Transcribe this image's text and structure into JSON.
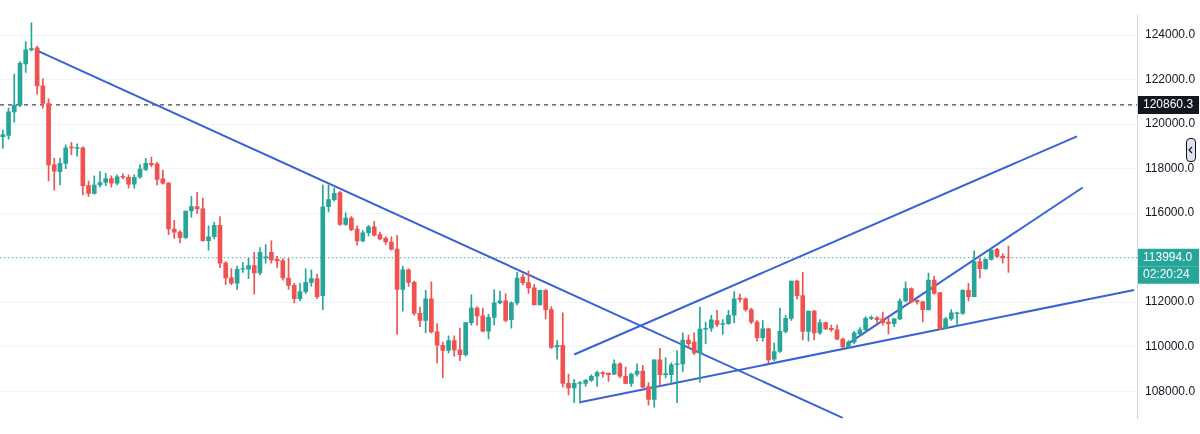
{
  "chart_data": {
    "type": "candlestick",
    "categories": [
      null,
      null,
      null,
      null,
      null,
      null,
      null,
      null,
      null,
      null,
      null,
      null,
      null,
      null,
      null,
      null,
      null,
      null,
      null,
      null,
      null,
      null,
      null,
      null,
      null,
      null,
      null,
      null,
      null,
      null,
      null,
      null,
      null,
      null,
      null,
      null,
      null,
      null,
      null,
      null,
      null,
      null,
      null,
      null,
      null,
      null,
      null,
      null,
      null,
      null,
      null,
      null,
      null,
      null,
      null,
      null,
      null,
      null,
      null,
      null,
      null,
      null,
      null,
      null,
      null,
      null,
      null,
      null,
      null,
      null,
      null,
      null,
      null,
      null,
      null,
      null,
      null,
      null,
      null,
      null,
      null,
      null,
      null,
      null,
      null,
      null,
      null,
      null,
      null,
      null,
      null,
      null,
      null,
      null,
      null,
      null,
      null,
      null,
      null,
      null,
      null,
      null,
      null,
      null,
      null,
      null,
      null,
      null,
      null,
      null,
      null,
      null,
      null,
      null,
      null,
      null,
      null,
      null,
      null,
      null,
      null,
      null,
      null,
      null,
      null,
      null,
      null,
      null,
      null,
      null,
      null,
      null,
      null,
      null,
      null,
      null,
      null,
      null,
      null,
      null,
      null,
      null,
      null,
      null,
      null,
      null,
      null,
      null,
      null,
      null,
      null,
      null,
      null,
      null,
      null,
      null,
      null,
      null,
      null,
      null,
      null,
      null,
      null,
      null,
      null,
      null,
      null,
      null,
      null,
      null,
      null,
      null,
      null,
      null,
      null,
      null,
      null,
      null,
      null,
      null,
      null,
      null,
      null,
      null,
      null,
      null,
      null,
      null,
      null,
      null,
      null,
      null,
      null,
      null,
      null,
      null,
      null,
      null,
      null
    ],
    "ohlc": [
      [
        119434,
        119740,
        118905,
        119532
      ],
      [
        119490,
        120715,
        119323,
        120548
      ],
      [
        120548,
        122246,
        120088,
        120854
      ],
      [
        120854,
        122803,
        120785,
        122733
      ],
      [
        122705,
        123708,
        122316,
        123332
      ],
      [
        123332,
        124543,
        123290,
        123388
      ],
      [
        123429,
        123499,
        121341,
        121717
      ],
      [
        121717,
        122037,
        120715,
        120924
      ],
      [
        120924,
        121133,
        117444,
        118168
      ],
      [
        118168,
        118460,
        117026,
        117889
      ],
      [
        117861,
        118460,
        117263,
        118237
      ],
      [
        118237,
        119072,
        118000,
        118933
      ],
      [
        118975,
        119184,
        118627,
        118933
      ],
      [
        118905,
        119114,
        118557,
        118947
      ],
      [
        118933,
        118975,
        116817,
        117235
      ],
      [
        117235,
        117444,
        116748,
        116887
      ],
      [
        116887,
        117680,
        116845,
        117263
      ],
      [
        117263,
        117861,
        117166,
        117374
      ],
      [
        117374,
        117792,
        117235,
        117555
      ],
      [
        117555,
        117680,
        117166,
        117346
      ],
      [
        117346,
        117722,
        117263,
        117625
      ],
      [
        117652,
        117764,
        117541,
        117610
      ],
      [
        117610,
        117722,
        117123,
        117304
      ],
      [
        117304,
        117722,
        117123,
        117610
      ],
      [
        117625,
        118181,
        117555,
        117973
      ],
      [
        117959,
        118460,
        117903,
        118237
      ],
      [
        118237,
        118517,
        118070,
        118181
      ],
      [
        118209,
        118279,
        117263,
        117513
      ],
      [
        117541,
        117931,
        117304,
        117346
      ],
      [
        117346,
        117374,
        115036,
        115286
      ],
      [
        115286,
        115676,
        114868,
        115147
      ],
      [
        115147,
        115217,
        114660,
        114896
      ],
      [
        114896,
        116093,
        114868,
        116093
      ],
      [
        116093,
        116748,
        115815,
        116288
      ],
      [
        116288,
        116929,
        115982,
        116191
      ],
      [
        116191,
        116678,
        114729,
        114757
      ],
      [
        114757,
        115425,
        114339,
        114938
      ],
      [
        114938,
        115592,
        114840,
        115453
      ],
      [
        115453,
        115843,
        113546,
        113755
      ],
      [
        113755,
        113824,
        112780,
        113087
      ],
      [
        113087,
        113504,
        112780,
        112850
      ],
      [
        112850,
        113616,
        112572,
        113476
      ],
      [
        113476,
        113783,
        113337,
        113504
      ],
      [
        113476,
        113963,
        113059,
        113643
      ],
      [
        113643,
        114242,
        112363,
        113310
      ],
      [
        113308,
        114449,
        113224,
        114240
      ],
      [
        113990,
        114588,
        113753,
        114032
      ],
      [
        114240,
        114755,
        113753,
        113892
      ],
      [
        113934,
        114059,
        113544,
        113850
      ],
      [
        113864,
        113962,
        112988,
        113085
      ],
      [
        113085,
        113962,
        112570,
        112751
      ],
      [
        112751,
        112848,
        111971,
        112152
      ],
      [
        112152,
        112848,
        112055,
        112472
      ],
      [
        112472,
        113502,
        112389,
        112890
      ],
      [
        112890,
        113447,
        112709,
        113057
      ],
      [
        113057,
        113266,
        112152,
        112250
      ],
      [
        112291,
        117261,
        111665,
        116286
      ],
      [
        116286,
        117261,
        116050,
        116607
      ],
      [
        116607,
        117122,
        116537,
        116885
      ],
      [
        116927,
        116982,
        115451,
        115493
      ],
      [
        115493,
        116008,
        115451,
        115771
      ],
      [
        115771,
        115841,
        115215,
        115256
      ],
      [
        115284,
        115423,
        114560,
        114755
      ],
      [
        114755,
        115215,
        114700,
        115117
      ],
      [
        115117,
        115451,
        114978,
        115382
      ],
      [
        115382,
        115632,
        114978,
        115006
      ],
      [
        115034,
        115145,
        114797,
        114839
      ],
      [
        114867,
        114936,
        114588,
        114700
      ],
      [
        114700,
        114936,
        114338,
        114380
      ],
      [
        114380,
        115006,
        110551,
        112570
      ],
      [
        112570,
        113614,
        111595,
        113447
      ],
      [
        113447,
        113502,
        112709,
        112890
      ],
      [
        112890,
        112946,
        111414,
        111498
      ],
      [
        111498,
        111776,
        110900,
        111178
      ],
      [
        111178,
        112528,
        110621,
        112152
      ],
      [
        112152,
        112918,
        110621,
        110663
      ],
      [
        110663,
        111039,
        109271,
        110064
      ],
      [
        110064,
        110203,
        108603,
        109827
      ],
      [
        109827,
        110482,
        109716,
        110273
      ],
      [
        110273,
        110482,
        109577,
        109855
      ],
      [
        109855,
        110830,
        109368,
        109646
      ],
      [
        109646,
        111080,
        109577,
        111080
      ],
      [
        111080,
        112333,
        110969,
        111735
      ],
      [
        111735,
        111804,
        110969,
        111387
      ],
      [
        111387,
        111735,
        110663,
        110691
      ],
      [
        110691,
        111456,
        110343,
        111317
      ],
      [
        111317,
        112570,
        110969,
        111971
      ],
      [
        111971,
        112500,
        111916,
        112055
      ],
      [
        112055,
        112389,
        111108,
        111178
      ],
      [
        111218,
        112011,
        110828,
        111970
      ],
      [
        111970,
        113334,
        111872,
        113083
      ],
      [
        113125,
        113264,
        112777,
        112874
      ],
      [
        112874,
        113403,
        112387,
        112638
      ],
      [
        112638,
        112805,
        111872,
        111872
      ],
      [
        111872,
        112526,
        111872,
        112526
      ],
      [
        112526,
        112568,
        111246,
        111663
      ],
      [
        111663,
        111803,
        109923,
        109965
      ],
      [
        109993,
        110272,
        109436,
        110063
      ],
      [
        110063,
        111524,
        108183,
        108350
      ],
      [
        108350,
        108768,
        107835,
        108142
      ],
      [
        108142,
        108531,
        107487,
        108350
      ],
      [
        108350,
        108434,
        107459,
        108392
      ],
      [
        108350,
        108531,
        108211,
        108489
      ],
      [
        108489,
        108740,
        108434,
        108670
      ],
      [
        108670,
        108907,
        108211,
        108838
      ],
      [
        108838,
        108879,
        108628,
        108782
      ],
      [
        108810,
        108810,
        108434,
        108740
      ],
      [
        108768,
        109408,
        108740,
        109227
      ],
      [
        109227,
        109269,
        108601,
        108670
      ],
      [
        108670,
        109088,
        108323,
        108350
      ],
      [
        108350,
        108810,
        108211,
        108768
      ],
      [
        108768,
        109227,
        108670,
        108907
      ],
      [
        108907,
        109158,
        108155,
        108183
      ],
      [
        108211,
        108392,
        107376,
        107627
      ],
      [
        107627,
        109408,
        107279,
        109408
      ],
      [
        109408,
        109923,
        108253,
        108740
      ],
      [
        108740,
        109506,
        108601,
        108796
      ],
      [
        108740,
        109269,
        108323,
        109186
      ],
      [
        109186,
        109826,
        107487,
        109227
      ],
      [
        109227,
        110619,
        108879,
        110299
      ],
      [
        110299,
        110522,
        109965,
        110132
      ],
      [
        110202,
        110619,
        109645,
        109715
      ],
      [
        109715,
        111775,
        108392,
        110787
      ],
      [
        110787,
        111107,
        110132,
        110828
      ],
      [
        110828,
        111413,
        110689,
        111204
      ],
      [
        111176,
        111636,
        110898,
        110995
      ],
      [
        110995,
        111218,
        110550,
        111037
      ],
      [
        111037,
        111636,
        110995,
        111413
      ],
      [
        111413,
        112471,
        111079,
        112151
      ],
      [
        112178,
        112360,
        112011,
        112123
      ],
      [
        112151,
        112192,
        111594,
        111663
      ],
      [
        111663,
        111733,
        111037,
        111107
      ],
      [
        111107,
        111176,
        110243,
        110410
      ],
      [
        110410,
        111176,
        110243,
        110800
      ],
      [
        110800,
        110828,
        109269,
        109408
      ],
      [
        109436,
        110160,
        109366,
        109784
      ],
      [
        109784,
        111733,
        109742,
        110689
      ],
      [
        110689,
        111413,
        110619,
        111274
      ],
      [
        111274,
        112944,
        111176,
        112944
      ],
      [
        112944,
        112986,
        112150,
        112290
      ],
      [
        112290,
        113334,
        110299,
        110689
      ],
      [
        110689,
        111594,
        110243,
        111594
      ],
      [
        111594,
        111635,
        110299,
        110619
      ],
      [
        110619,
        111218,
        110550,
        111079
      ],
      [
        111079,
        111107,
        110759,
        110800
      ],
      [
        110828,
        110967,
        110689,
        110759
      ],
      [
        110759,
        110967,
        110299,
        110341
      ],
      [
        110341,
        110383,
        109965,
        109993
      ],
      [
        109993,
        110271,
        109965,
        110202
      ],
      [
        110202,
        110689,
        110132,
        110619
      ],
      [
        110578,
        110856,
        110522,
        110759
      ],
      [
        110759,
        111357,
        110661,
        111274
      ],
      [
        111274,
        111385,
        111218,
        111315
      ],
      [
        111301,
        111357,
        111037,
        111218
      ],
      [
        111246,
        111552,
        110967,
        111079
      ],
      [
        111107,
        111274,
        110578,
        111037
      ],
      [
        111037,
        111274,
        110898,
        111246
      ],
      [
        111246,
        112150,
        111218,
        112053
      ],
      [
        112053,
        112916,
        112011,
        112610
      ],
      [
        112610,
        112638,
        111970,
        112011
      ],
      [
        112081,
        112109,
        111914,
        112011
      ],
      [
        112011,
        112053,
        111107,
        111663
      ],
      [
        111663,
        113306,
        111635,
        112986
      ],
      [
        112986,
        113167,
        112359,
        112387
      ],
      [
        112429,
        112429,
        110759,
        110800
      ],
      [
        110828,
        111315,
        110800,
        111246
      ],
      [
        111246,
        111663,
        111176,
        111524
      ],
      [
        111482,
        111552,
        110940,
        111524
      ],
      [
        111496,
        112568,
        111454,
        112526
      ],
      [
        112526,
        112846,
        112053,
        112248
      ],
      [
        112248,
        114308,
        112248,
        113821
      ],
      [
        113821,
        113960,
        113083,
        113501
      ],
      [
        113501,
        113960,
        113473,
        113918
      ],
      [
        113918,
        114419,
        113891,
        114336
      ],
      [
        114378,
        114419,
        114002,
        114057
      ],
      [
        114057,
        114169,
        113751,
        114002
      ],
      [
        114002,
        114517,
        113334,
        113994
      ],
      null,
      null,
      null,
      null,
      null,
      null,
      null,
      null,
      null,
      null,
      null,
      null,
      null,
      null,
      null,
      null,
      null,
      null,
      null,
      null,
      null,
      null
    ],
    "colors": [
      "#26a69a",
      "#26a69a",
      "#26a69a",
      "#26a69a",
      "#26a69a",
      "#26a69a",
      "#ef5350",
      "#ef5350",
      "#ef5350",
      "#ef5350",
      "#26a69a",
      "#26a69a",
      "#ef5350",
      "#26a69a",
      "#ef5350",
      "#ef5350",
      "#26a69a",
      "#26a69a",
      "#26a69a",
      "#ef5350",
      "#26a69a",
      "#ef5350",
      "#ef5350",
      "#26a69a",
      "#26a69a",
      "#26a69a",
      "#ef5350",
      "#ef5350",
      "#ef5350",
      "#ef5350",
      "#ef5350",
      "#ef5350",
      "#26a69a",
      "#26a69a",
      "#ef5350",
      "#ef5350",
      "#26a69a",
      "#26a69a",
      "#ef5350",
      "#ef5350",
      "#ef5350",
      "#26a69a",
      "#26a69a",
      "#26a69a",
      "#ef5350",
      "#26a69a",
      "#26a69a",
      "#ef5350",
      "#ef5350",
      "#ef5350",
      "#ef5350",
      "#ef5350",
      "#26a69a",
      "#26a69a",
      "#26a69a",
      "#ef5350",
      "#26a69a",
      "#26a69a",
      "#26a69a",
      "#ef5350",
      "#26a69a",
      "#ef5350",
      "#ef5350",
      "#26a69a",
      "#26a69a",
      "#ef5350",
      "#ef5350",
      "#ef5350",
      "#ef5350",
      "#ef5350",
      "#26a69a",
      "#ef5350",
      "#ef5350",
      "#ef5350",
      "#26a69a",
      "#ef5350",
      "#ef5350",
      "#ef5350",
      "#26a69a",
      "#ef5350",
      "#ef5350",
      "#26a69a",
      "#26a69a",
      "#ef5350",
      "#ef5350",
      "#26a69a",
      "#26a69a",
      "#26a69a",
      "#ef5350",
      "#26a69a",
      "#26a69a",
      "#ef5350",
      "#ef5350",
      "#ef5350",
      "#26a69a",
      "#ef5350",
      "#ef5350",
      "#26a69a",
      "#ef5350",
      "#ef5350",
      "#26a69a",
      "#26a69a",
      "#26a69a",
      "#26a69a",
      "#26a69a",
      "#ef5350",
      "#ef5350",
      "#26a69a",
      "#ef5350",
      "#ef5350",
      "#26a69a",
      "#26a69a",
      "#ef5350",
      "#ef5350",
      "#26a69a",
      "#ef5350",
      "#26a69a",
      "#26a69a",
      "#26a69a",
      "#26a69a",
      "#ef5350",
      "#ef5350",
      "#26a69a",
      "#26a69a",
      "#26a69a",
      "#ef5350",
      "#26a69a",
      "#26a69a",
      "#26a69a",
      "#ef5350",
      "#ef5350",
      "#ef5350",
      "#ef5350",
      "#26a69a",
      "#ef5350",
      "#26a69a",
      "#26a69a",
      "#26a69a",
      "#26a69a",
      "#ef5350",
      "#ef5350",
      "#26a69a",
      "#ef5350",
      "#26a69a",
      "#ef5350",
      "#ef5350",
      "#ef5350",
      "#ef5350",
      "#26a69a",
      "#26a69a",
      "#26a69a",
      "#26a69a",
      "#26a69a",
      "#ef5350",
      "#ef5350",
      "#ef5350",
      "#26a69a",
      "#26a69a",
      "#26a69a",
      "#ef5350",
      "#ef5350",
      "#ef5350",
      "#26a69a",
      "#ef5350",
      "#ef5350",
      "#26a69a",
      "#26a69a",
      "#26a69a",
      "#26a69a",
      "#ef5350",
      "#26a69a",
      "#ef5350",
      "#26a69a",
      "#26a69a",
      "#ef5350",
      "#ef5350",
      "#ef5350",
      null,
      null,
      null,
      null,
      null,
      null,
      null,
      null,
      null,
      null,
      null,
      null,
      null,
      null,
      null,
      null,
      null,
      null,
      null,
      null,
      null,
      null
    ],
    "ylim": [
      106760,
      124890
    ],
    "yticks": [
      {
        "value": 108000,
        "label": "108000.0"
      },
      {
        "value": 110000,
        "label": "110000.0"
      },
      {
        "value": 112000,
        "label": "112000.0"
      },
      {
        "value": 114000,
        "label": null
      },
      {
        "value": 116000,
        "label": "116000.0"
      },
      {
        "value": 118000,
        "label": "118000.0"
      },
      {
        "value": 120000,
        "label": "120000.0"
      },
      {
        "value": 122000,
        "label": "122000.0"
      },
      {
        "value": 124000,
        "label": "124000.0"
      }
    ],
    "tick_labels": "y",
    "grid": "y",
    "legend": false,
    "series": [
      {
        "type": "line",
        "color": "#3a62d6",
        "values": [
          null,
          null,
          null,
          null,
          null,
          null,
          123300,
          null,
          null,
          null,
          null,
          null,
          null,
          null,
          null,
          null,
          null,
          null,
          null,
          null,
          null,
          null,
          null,
          null,
          null,
          null,
          null,
          null,
          null,
          null,
          null,
          null,
          null,
          null,
          null,
          null,
          null,
          null,
          null,
          null,
          null,
          null,
          null,
          null,
          null,
          null,
          null,
          null,
          null,
          null,
          null,
          null,
          null,
          null,
          null,
          null,
          null,
          null,
          null,
          null,
          null,
          null,
          null,
          null,
          null,
          null,
          null,
          null,
          null,
          null,
          null,
          null,
          null,
          null,
          null,
          null,
          null,
          null,
          null,
          null,
          null,
          null,
          null,
          null,
          null,
          null,
          null,
          null,
          null,
          null,
          null,
          null,
          null,
          null,
          null,
          null,
          null,
          null,
          null,
          null,
          null,
          null,
          null,
          null,
          null,
          null,
          null,
          null,
          null,
          null,
          null,
          null,
          null,
          null,
          null,
          null,
          null,
          null,
          null,
          null,
          null,
          null,
          null,
          null,
          null,
          null,
          null,
          null,
          null,
          null,
          null,
          null,
          null,
          null,
          null,
          null,
          null,
          null,
          null,
          null,
          null,
          null,
          null,
          null,
          null,
          null,
          null,
          106800,
          null,
          null,
          null,
          null,
          null,
          null,
          null,
          null,
          null,
          null,
          null,
          null,
          null,
          null,
          null,
          null,
          null,
          null,
          null,
          null,
          null,
          null,
          null,
          null,
          null,
          null,
          null,
          null,
          null,
          null,
          null,
          null,
          null,
          null,
          null,
          null,
          null,
          null,
          null,
          null,
          null,
          null,
          null,
          null,
          null,
          null,
          null,
          null,
          null,
          null,
          null
        ]
      },
      {
        "type": "line",
        "color": "#3a62d6",
        "values": [
          null,
          null,
          null,
          null,
          null,
          null,
          null,
          null,
          null,
          null,
          null,
          null,
          null,
          null,
          null,
          null,
          null,
          null,
          null,
          null,
          null,
          null,
          null,
          null,
          null,
          null,
          null,
          null,
          null,
          null,
          null,
          null,
          null,
          null,
          null,
          null,
          null,
          null,
          null,
          null,
          null,
          null,
          null,
          null,
          null,
          null,
          null,
          null,
          null,
          null,
          null,
          null,
          null,
          null,
          null,
          null,
          null,
          null,
          null,
          null,
          null,
          null,
          null,
          null,
          null,
          null,
          null,
          null,
          null,
          null,
          null,
          null,
          null,
          null,
          null,
          null,
          null,
          null,
          null,
          null,
          null,
          null,
          null,
          null,
          null,
          null,
          null,
          null,
          null,
          null,
          null,
          null,
          null,
          null,
          null,
          null,
          null,
          null,
          null,
          null,
          109650,
          null,
          null,
          null,
          null,
          null,
          null,
          null,
          null,
          null,
          null,
          null,
          null,
          null,
          null,
          null,
          null,
          null,
          null,
          null,
          null,
          null,
          null,
          null,
          null,
          null,
          null,
          null,
          null,
          null,
          null,
          null,
          null,
          null,
          null,
          null,
          null,
          null,
          null,
          null,
          null,
          null,
          null,
          null,
          null,
          null,
          null,
          null,
          null,
          null,
          null,
          null,
          null,
          null,
          null,
          null,
          null,
          null,
          null,
          null,
          null,
          null,
          null,
          null,
          null,
          null,
          null,
          null,
          null,
          null,
          null,
          null,
          null,
          null,
          null,
          null,
          null,
          null,
          null,
          null,
          null,
          null,
          null,
          null,
          null,
          null,
          null,
          null,
          119450,
          null,
          null,
          null,
          null,
          null,
          null,
          null,
          null,
          null,
          null
        ]
      },
      {
        "type": "line",
        "color": "#3a62d6",
        "values": [
          null,
          null,
          null,
          null,
          null,
          null,
          null,
          null,
          null,
          null,
          null,
          null,
          null,
          null,
          null,
          null,
          null,
          null,
          null,
          null,
          null,
          null,
          null,
          null,
          null,
          null,
          null,
          null,
          null,
          null,
          null,
          null,
          null,
          null,
          null,
          null,
          null,
          null,
          null,
          null,
          null,
          null,
          null,
          null,
          null,
          null,
          null,
          null,
          null,
          null,
          null,
          null,
          null,
          null,
          null,
          null,
          null,
          null,
          null,
          null,
          null,
          null,
          null,
          null,
          null,
          null,
          null,
          null,
          null,
          null,
          null,
          null,
          null,
          null,
          null,
          null,
          null,
          null,
          null,
          null,
          null,
          null,
          null,
          null,
          null,
          null,
          null,
          null,
          null,
          null,
          null,
          null,
          null,
          null,
          null,
          null,
          null,
          null,
          null,
          null,
          null,
          null,
          null,
          null,
          null,
          null,
          null,
          null,
          null,
          null,
          null,
          null,
          null,
          null,
          null,
          null,
          null,
          null,
          null,
          null,
          null,
          null,
          null,
          null,
          null,
          null,
          null,
          null,
          null,
          null,
          null,
          null,
          null,
          null,
          null,
          null,
          null,
          null,
          null,
          null,
          null,
          null,
          null,
          null,
          null,
          null,
          null,
          null,
          110150,
          null,
          null,
          null,
          null,
          null,
          null,
          null,
          null,
          null,
          null,
          null,
          null,
          null,
          null,
          null,
          null,
          null,
          null,
          null,
          null,
          null,
          null,
          null,
          null,
          null,
          null,
          null,
          null,
          null,
          null,
          null,
          null,
          null,
          null,
          null,
          null,
          null,
          null,
          null,
          null,
          117150,
          null,
          null,
          null,
          null,
          null,
          null,
          null,
          null,
          null
        ]
      },
      {
        "type": "line",
        "color": "#3a62d6",
        "values": [
          null,
          null,
          null,
          null,
          null,
          null,
          null,
          null,
          null,
          null,
          null,
          null,
          null,
          null,
          null,
          null,
          null,
          null,
          null,
          null,
          null,
          null,
          null,
          null,
          null,
          null,
          null,
          null,
          null,
          null,
          null,
          null,
          null,
          null,
          null,
          null,
          null,
          null,
          null,
          null,
          null,
          null,
          null,
          null,
          null,
          null,
          null,
          null,
          null,
          null,
          null,
          null,
          null,
          null,
          null,
          null,
          null,
          null,
          null,
          null,
          null,
          null,
          null,
          null,
          null,
          null,
          null,
          null,
          null,
          null,
          null,
          null,
          null,
          null,
          null,
          null,
          null,
          null,
          null,
          null,
          null,
          null,
          null,
          null,
          null,
          null,
          null,
          null,
          null,
          null,
          null,
          null,
          null,
          null,
          null,
          null,
          null,
          null,
          null,
          null,
          null,
          107500,
          null,
          null,
          null,
          null,
          null,
          null,
          null,
          null,
          null,
          null,
          null,
          null,
          null,
          null,
          null,
          null,
          null,
          null,
          null,
          null,
          null,
          null,
          null,
          null,
          null,
          null,
          null,
          null,
          null,
          null,
          null,
          null,
          null,
          null,
          null,
          null,
          null,
          null,
          null,
          null,
          null,
          null,
          null,
          null,
          null,
          null,
          null,
          null,
          null,
          null,
          null,
          null,
          null,
          null,
          null,
          null,
          null,
          null,
          null,
          null,
          null,
          null,
          null,
          null,
          null,
          null,
          null,
          null,
          null,
          null,
          null,
          null,
          null,
          null,
          null,
          null,
          null,
          null,
          null,
          null,
          null,
          null,
          null,
          null,
          null,
          null,
          null,
          null,
          null,
          null,
          null,
          null,
          null,
          null,
          null,
          null,
          112550
        ]
      }
    ],
    "ref_lines": [
      {
        "axis": "y",
        "value": 120860.3,
        "label": "120860.3",
        "color": "#131722",
        "line_style": "dashed"
      },
      {
        "axis": "y",
        "value": 113994,
        "label": "113994.0",
        "color": "#26a69a",
        "line_style": "dotted"
      }
    ],
    "annotations": [
      "02:20:24"
    ]
  }
}
